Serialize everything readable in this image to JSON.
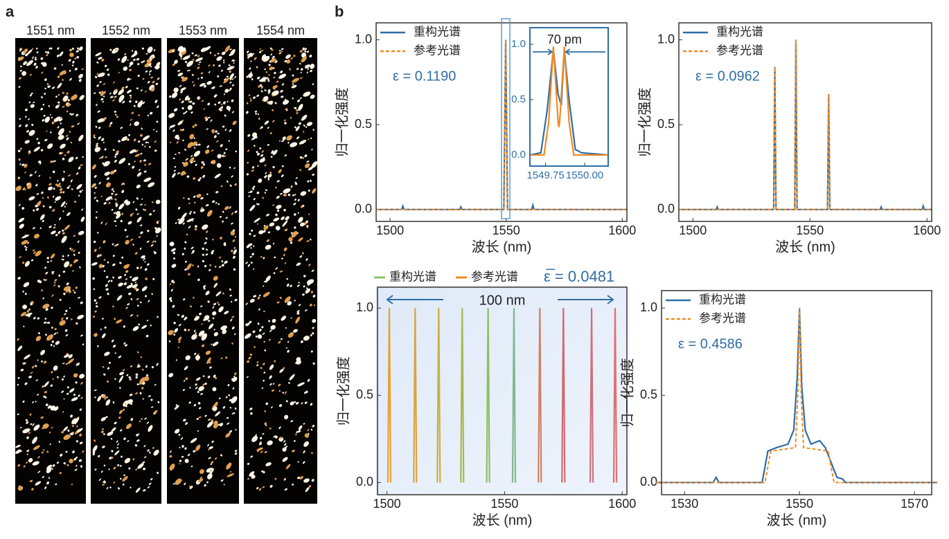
{
  "panel_labels": [
    "a",
    "b"
  ],
  "speckle": {
    "labels": [
      "1551 nm",
      "1552 nm",
      "1553 nm",
      "1554 nm"
    ]
  },
  "chart_data": [
    {
      "type": "line",
      "xlabel": "波长 (nm)",
      "ylabel": "归一化强度",
      "annotation": "ε = 0.1190",
      "xlim": [
        1494,
        1602
      ],
      "xticks": [
        1500,
        1550,
        1600
      ],
      "ylim": [
        -0.07,
        1.1
      ],
      "yticks": [
        {
          "value": 0,
          "label": "0.0"
        },
        {
          "value": 0.5,
          "label": "0.5"
        },
        {
          "value": 1,
          "label": "1.0"
        }
      ],
      "series": [
        {
          "name": "重构光谱",
          "color": "#2e6da4",
          "dash": false,
          "x": [
            1494,
            1505,
            1505.5,
            1506,
            1530,
            1530.5,
            1531,
            1549,
            1549.8,
            1550.6,
            1561,
            1561.5,
            1562,
            1602
          ],
          "values": [
            0,
            0,
            0.02,
            0,
            0,
            0.015,
            0,
            0,
            1,
            0,
            0,
            0.025,
            0,
            0
          ]
        },
        {
          "name": "参考光谱",
          "color": "#f08a24",
          "dash": true,
          "x": [
            1494,
            1549,
            1549.8,
            1550.6,
            1602
          ],
          "values": [
            0,
            0,
            1,
            0,
            0
          ]
        }
      ]
    },
    {
      "type": "line",
      "annotation": "70 pm",
      "xlim": [
        1549.65,
        1550.15
      ],
      "xticks": [
        1549.75,
        {
          "value": 1550,
          "label": "1550.00"
        }
      ],
      "ylim": [
        -0.1,
        1.15
      ],
      "yticks": [
        {
          "value": 0,
          "label": "0.0"
        },
        {
          "value": 0.5,
          "label": "0.5"
        },
        {
          "value": 1,
          "label": "1.0"
        }
      ],
      "series": [
        {
          "color": "#2e6da4",
          "dash": false,
          "x": [
            1549.65,
            1549.72,
            1549.76,
            1549.8,
            1549.83,
            1549.85,
            1549.87,
            1549.9,
            1549.94,
            1549.98,
            1550.15
          ],
          "values": [
            0,
            0.02,
            0.4,
            0.95,
            0.55,
            0.45,
            0.95,
            0.5,
            0.05,
            0.02,
            0
          ]
        },
        {
          "color": "#f08a24",
          "dash": false,
          "x": [
            1549.65,
            1549.74,
            1549.77,
            1549.8,
            1549.83,
            1549.835,
            1549.84,
            1549.87,
            1549.9,
            1549.93,
            1550.15
          ],
          "values": [
            0,
            0,
            0.3,
            0.98,
            0.3,
            0.25,
            0.3,
            0.98,
            0.3,
            0,
            0
          ]
        }
      ]
    },
    {
      "type": "line",
      "xlabel": "波长 (nm)",
      "ylabel": "归一化强度",
      "annotation": "ε = 0.0962",
      "xlim": [
        1494,
        1602
      ],
      "xticks": [
        1500,
        1550,
        1600
      ],
      "ylim": [
        -0.07,
        1.1
      ],
      "yticks": [
        {
          "value": 0,
          "label": "0.0"
        },
        {
          "value": 0.5,
          "label": "0.5"
        },
        {
          "value": 1,
          "label": "1.0"
        }
      ],
      "series": [
        {
          "name": "重构光谱",
          "color": "#2e6da4",
          "dash": false,
          "x": [
            1494,
            1510,
            1510.4,
            1510.8,
            1534.5,
            1535,
            1535.5,
            1543.5,
            1544,
            1544.5,
            1557.5,
            1558,
            1558.5,
            1580,
            1580.4,
            1580.8,
            1598,
            1598.4,
            1598.8,
            1602
          ],
          "values": [
            0,
            0,
            0.015,
            0,
            0,
            0.84,
            0,
            0,
            1,
            0,
            0,
            0.68,
            0,
            0,
            0.015,
            0,
            0,
            0.02,
            0,
            0
          ]
        },
        {
          "name": "参考光谱",
          "color": "#f08a24",
          "dash": true,
          "x": [
            1494,
            1534.5,
            1535,
            1535.5,
            1543.5,
            1544,
            1544.5,
            1557.5,
            1558,
            1558.5,
            1602
          ],
          "values": [
            0,
            0,
            0.84,
            0,
            0,
            1,
            0,
            0,
            0.68,
            0,
            0
          ]
        }
      ]
    },
    {
      "type": "line",
      "xlabel": "波长 (nm)",
      "ylabel": "归一化强度",
      "annotation": "ε̅ = 0.0481",
      "span_label": "100 nm",
      "legend_labels": [
        "重构光谱",
        "参考光谱"
      ],
      "xlim": [
        1496,
        1602
      ],
      "xticks": [
        1500,
        1550,
        1600
      ],
      "ylim": [
        -0.07,
        1.12
      ],
      "yticks": [
        {
          "value": 0,
          "label": "0.0"
        },
        {
          "value": 0.5,
          "label": "0.5"
        },
        {
          "value": 1,
          "label": "1.0"
        }
      ],
      "series": [
        {
          "color": "#e8a030",
          "dash": false,
          "x": [
            1500.4,
            1501,
            1501.6
          ],
          "values": [
            0,
            1,
            0
          ]
        },
        {
          "color": "#d9a43c",
          "dash": false,
          "x": [
            1511.4,
            1512,
            1512.6
          ],
          "values": [
            0,
            1,
            0
          ]
        },
        {
          "color": "#c8b040",
          "dash": false,
          "x": [
            1521.4,
            1522,
            1522.6
          ],
          "values": [
            0,
            1,
            0
          ]
        },
        {
          "color": "#a8b848",
          "dash": false,
          "x": [
            1531.4,
            1532,
            1532.6
          ],
          "values": [
            0,
            1,
            0
          ]
        },
        {
          "color": "#8cc060",
          "dash": false,
          "x": [
            1542.4,
            1543,
            1543.6
          ],
          "values": [
            0,
            1,
            0
          ]
        },
        {
          "color": "#80b890",
          "dash": false,
          "x": [
            1553.4,
            1554,
            1554.6
          ],
          "values": [
            0,
            1,
            0
          ]
        },
        {
          "color": "#d08060",
          "dash": false,
          "x": [
            1564.4,
            1565,
            1565.6
          ],
          "values": [
            0,
            1,
            0
          ]
        },
        {
          "color": "#d06a70",
          "dash": false,
          "x": [
            1574.4,
            1575,
            1575.6
          ],
          "values": [
            0,
            1,
            0
          ]
        },
        {
          "color": "#d07080",
          "dash": false,
          "x": [
            1586.4,
            1587,
            1587.6
          ],
          "values": [
            0,
            1,
            0
          ]
        },
        {
          "color": "#e07070",
          "dash": false,
          "x": [
            1596.4,
            1597,
            1597.6
          ],
          "values": [
            0,
            1,
            0
          ]
        }
      ]
    },
    {
      "type": "line",
      "xlabel": "波长 (nm)",
      "ylabel": "归一化强度",
      "annotation": "ε = 0.4586",
      "xlim": [
        1526,
        1573
      ],
      "xticks": [
        1530,
        1550,
        1570
      ],
      "ylim": [
        -0.07,
        1.1
      ],
      "yticks": [
        {
          "value": 0,
          "label": "0.0"
        },
        {
          "value": 0.5,
          "label": "0.5"
        },
        {
          "value": 1,
          "label": "1.0"
        }
      ],
      "series": [
        {
          "name": "重构光谱",
          "color": "#2e6da4",
          "dash": false,
          "x": [
            1525,
            1535,
            1535.5,
            1536,
            1543.5,
            1544.5,
            1546,
            1548,
            1549,
            1549.6,
            1550,
            1550.4,
            1551,
            1552,
            1553.5,
            1554.5,
            1556.5,
            1557.5,
            1558,
            1574
          ],
          "values": [
            0,
            0,
            0.03,
            0,
            0,
            0.18,
            0.2,
            0.22,
            0.3,
            0.6,
            1,
            0.55,
            0.3,
            0.22,
            0.24,
            0.2,
            0.03,
            0.02,
            0,
            0
          ]
        },
        {
          "name": "参考光谱",
          "color": "#f08a24",
          "dash": true,
          "x": [
            1525,
            1544,
            1545,
            1549.3,
            1549.7,
            1550,
            1550.3,
            1550.7,
            1555,
            1556,
            1574
          ],
          "values": [
            0,
            0,
            0.18,
            0.2,
            0.5,
            1,
            0.5,
            0.2,
            0.18,
            0,
            0
          ]
        }
      ]
    }
  ]
}
